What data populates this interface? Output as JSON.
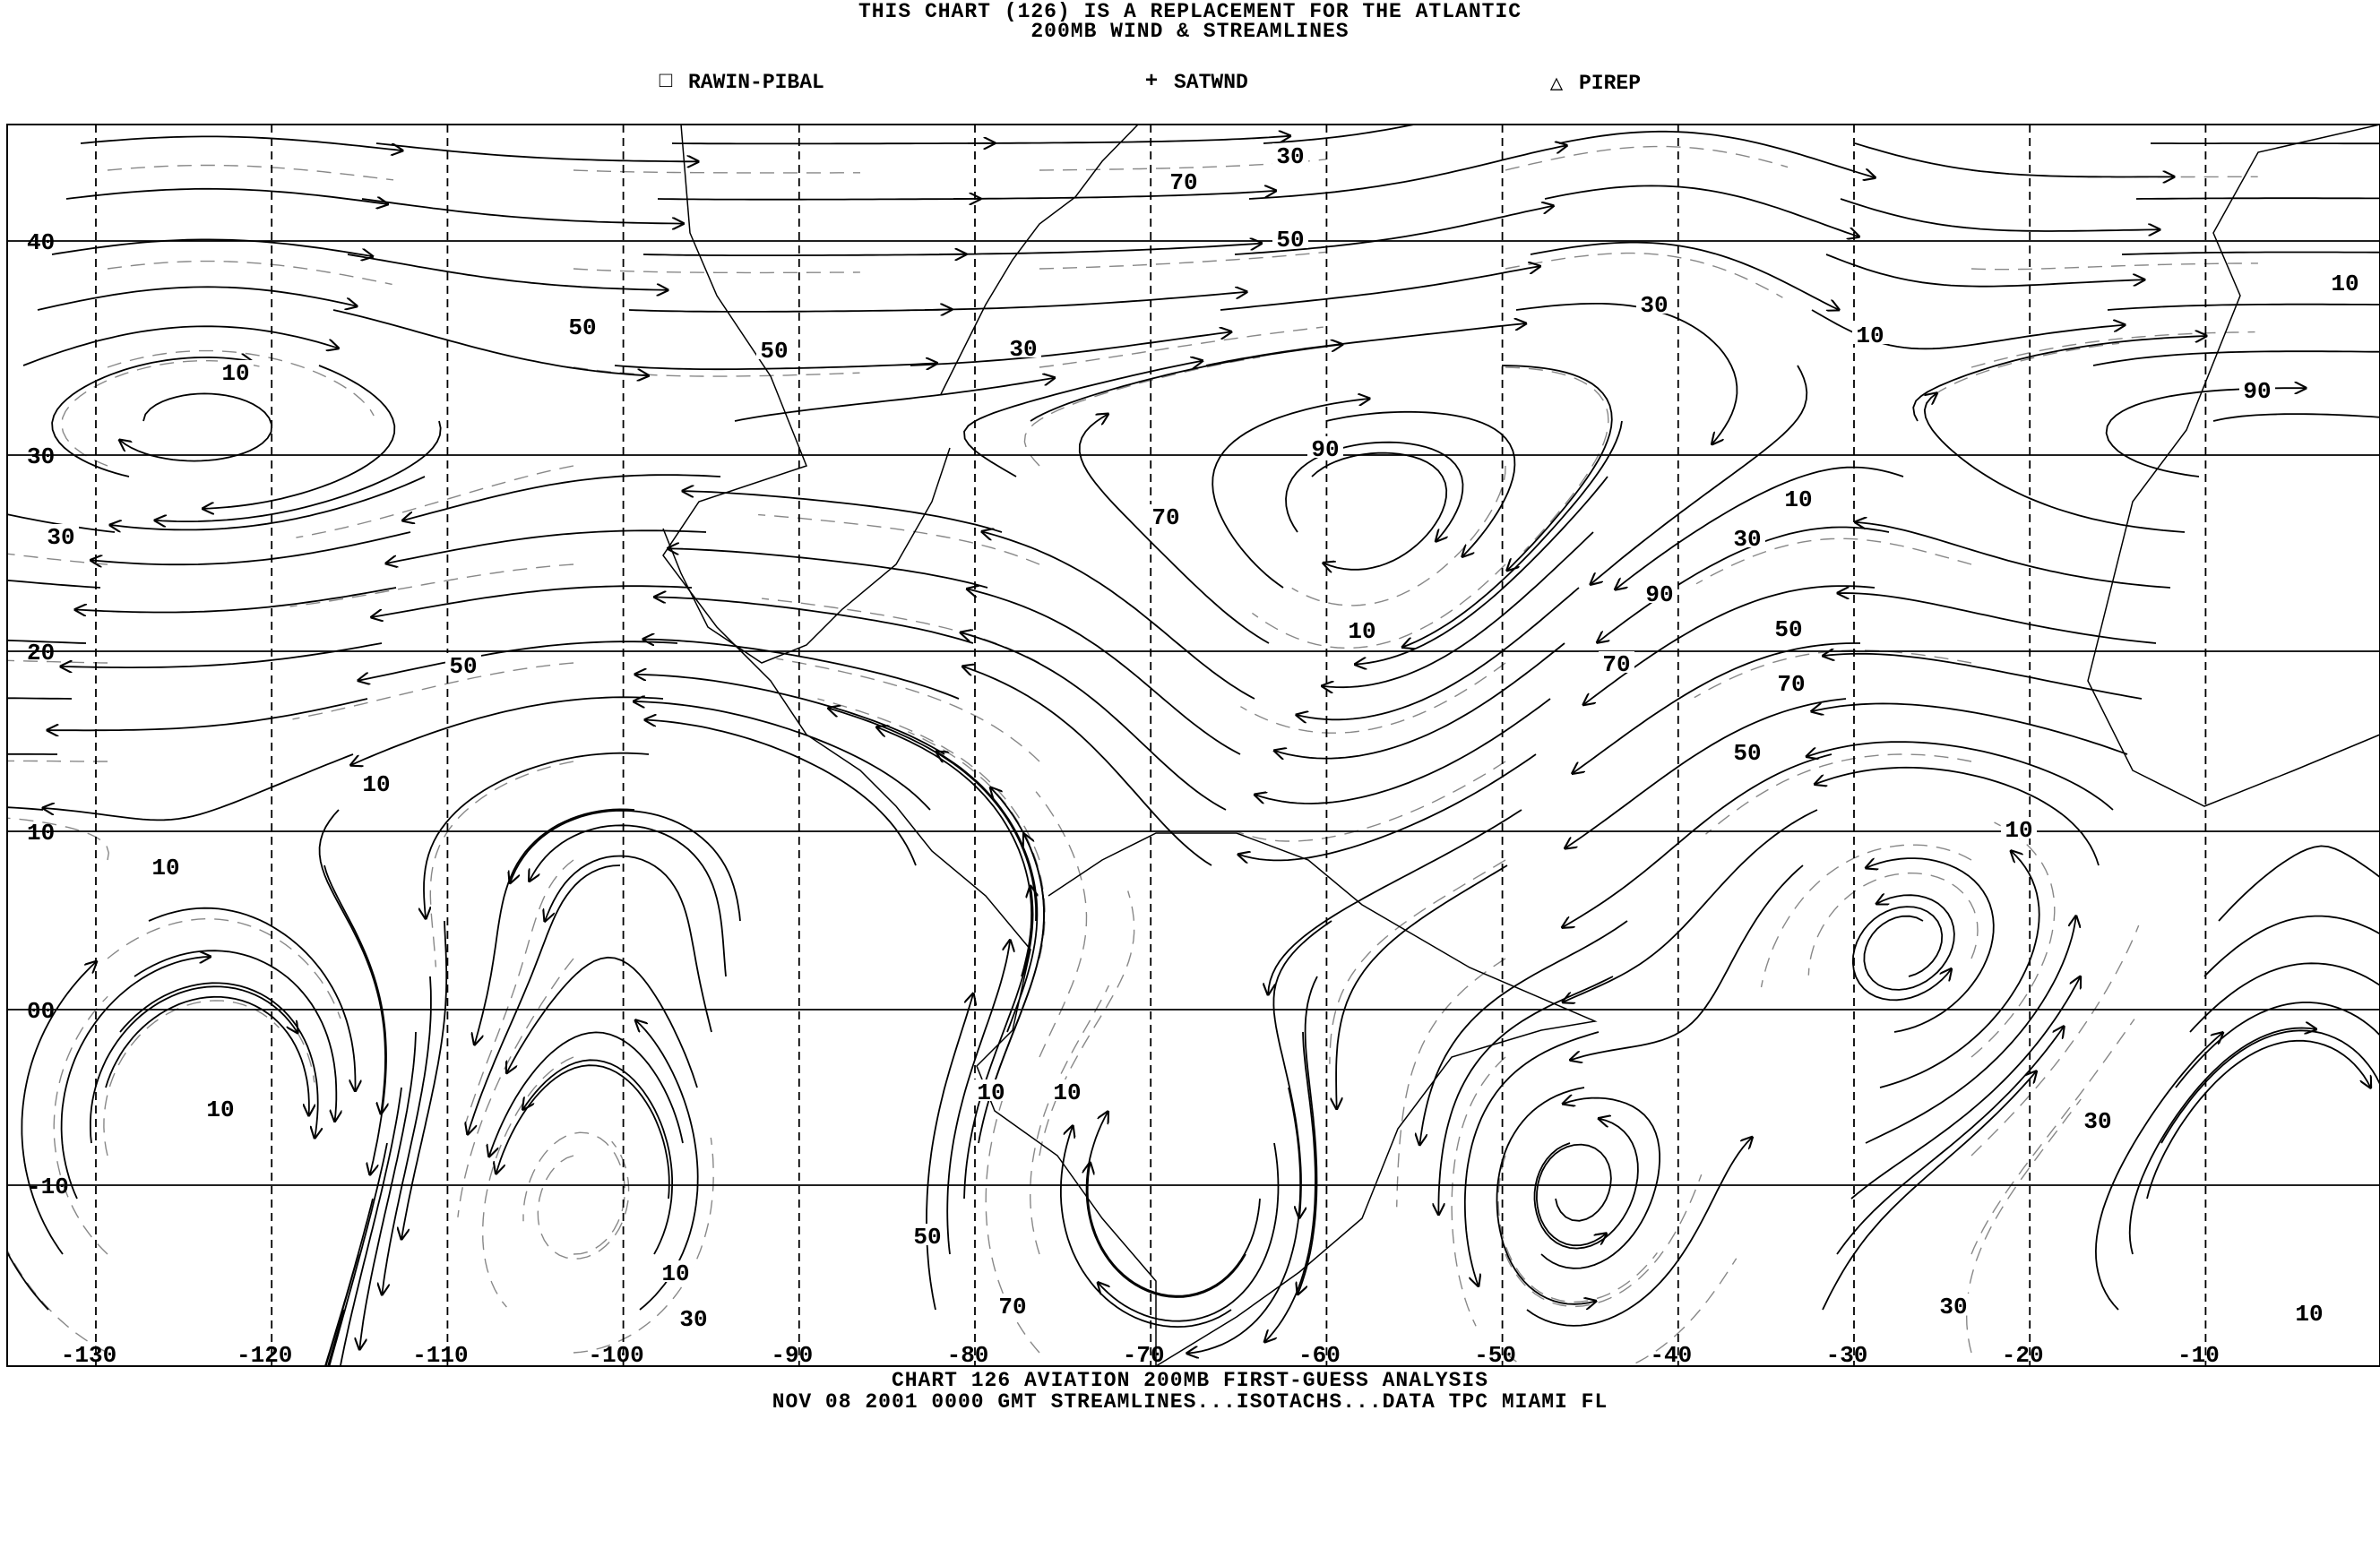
{
  "header": {
    "line1": "THIS CHART (126) IS A REPLACEMENT FOR THE ATLANTIC",
    "line2": "200MB WIND & STREAMLINES"
  },
  "legend": [
    {
      "symbol": "square-icon",
      "glyph": "□",
      "label": "RAWIN-PIBAL"
    },
    {
      "symbol": "plus-icon",
      "glyph": "+",
      "label": "SATWND"
    },
    {
      "symbol": "triangle-icon",
      "glyph": "△",
      "label": "PIREP"
    }
  ],
  "map": {
    "latitude_labels": [
      "40",
      "30",
      "20",
      "10",
      "00",
      "-10"
    ],
    "longitude_labels": [
      "-130",
      "-120",
      "-110",
      "-100",
      "-90",
      "-80",
      "-70",
      "-60",
      "-50",
      "-40",
      "-30",
      "-20",
      "-10"
    ],
    "isotach_labels": [
      "30",
      "70",
      "50",
      "30",
      "10",
      "10",
      "90",
      "50",
      "50",
      "30",
      "10",
      "30",
      "90",
      "70",
      "10",
      "30",
      "10",
      "90",
      "50",
      "70",
      "70",
      "50",
      "50",
      "10",
      "10",
      "10",
      "10",
      "10",
      "10",
      "30",
      "50",
      "10",
      "30",
      "10",
      "70",
      "30"
    ],
    "colors": {
      "lines": "#000000",
      "isotachs": "#888888",
      "background": "#ffffff"
    }
  },
  "footer": {
    "line1": "CHART 126 AVIATION 200MB FIRST-GUESS ANALYSIS",
    "line2": "NOV 08 2001 0000 GMT   STREAMLINES...ISOTACHS...DATA   TPC MIAMI FL"
  }
}
